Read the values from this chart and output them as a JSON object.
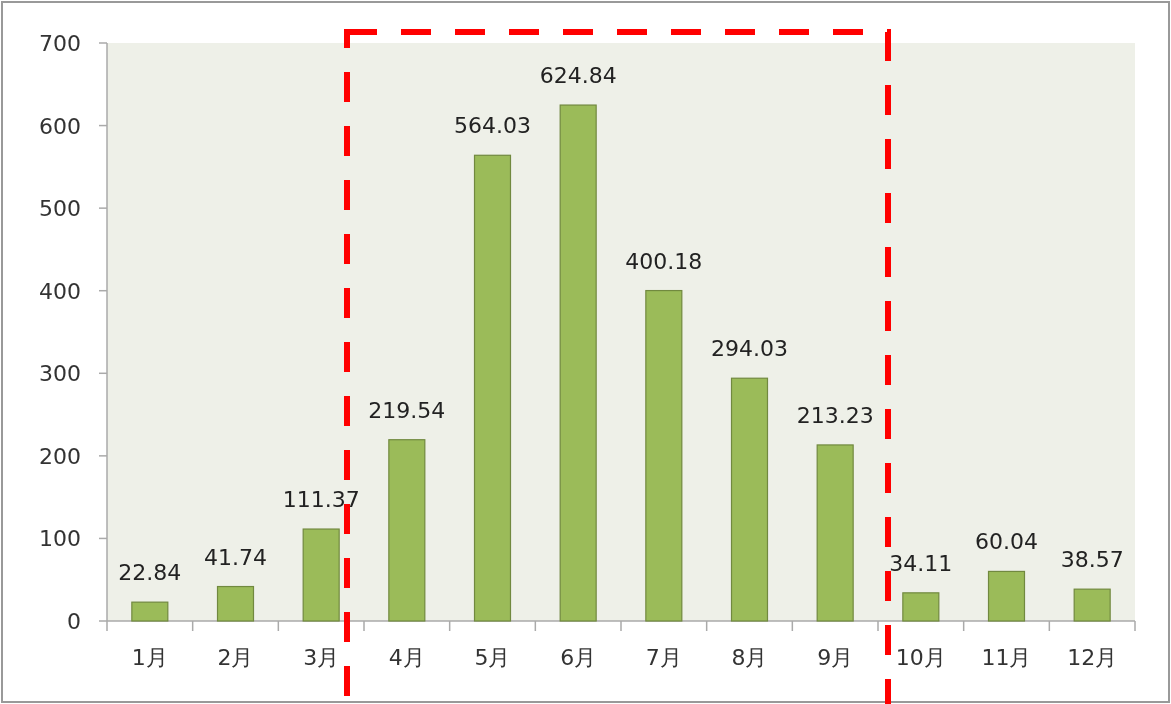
{
  "chart_data": {
    "type": "bar",
    "categories": [
      "1月",
      "2月",
      "3月",
      "4月",
      "5月",
      "6月",
      "7月",
      "8月",
      "9月",
      "10月",
      "11月",
      "12月"
    ],
    "values": [
      22.84,
      41.74,
      111.37,
      219.54,
      564.03,
      624.84,
      400.18,
      294.03,
      213.23,
      34.11,
      60.04,
      38.57
    ],
    "color": "#9bbb59",
    "ylim": [
      0,
      700
    ],
    "yticks": [
      0,
      100,
      200,
      300,
      400,
      500,
      600,
      700
    ],
    "data_labels": true
  }
}
